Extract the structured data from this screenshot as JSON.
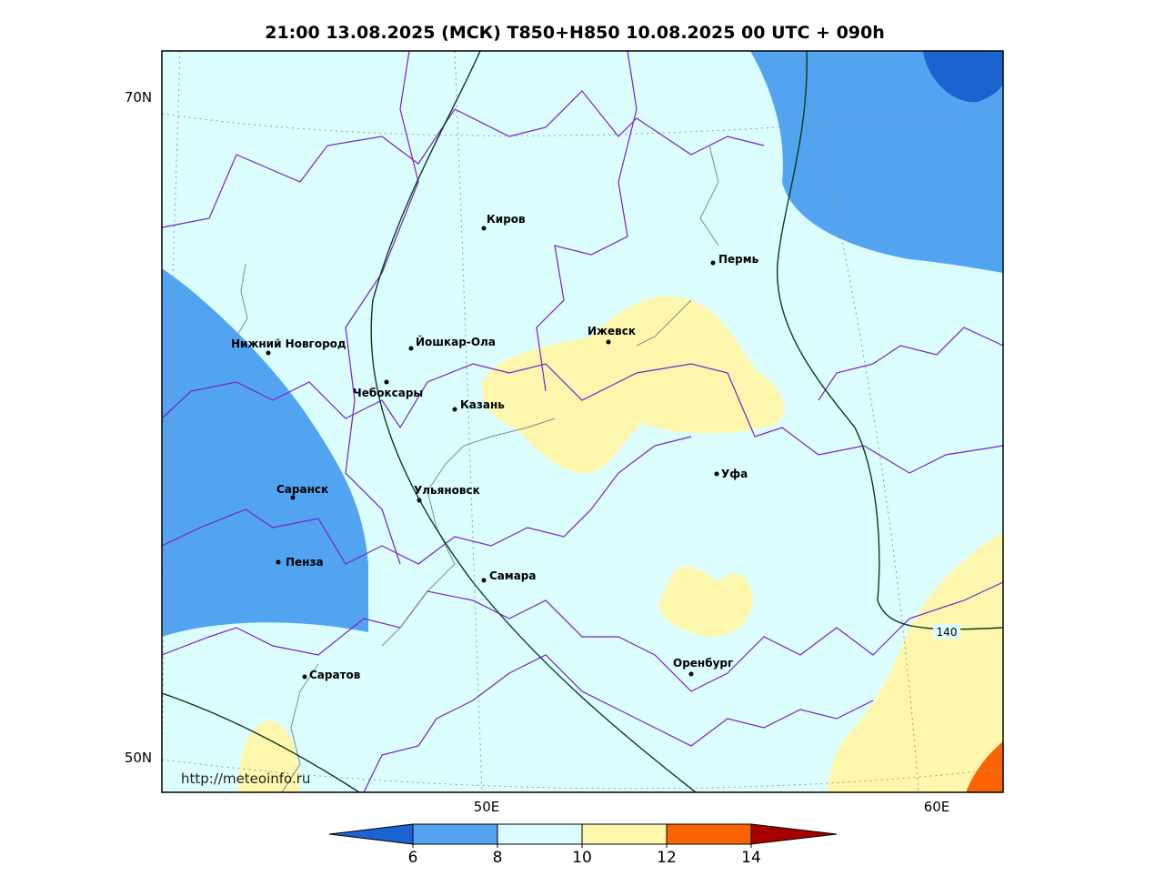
{
  "title": "21:00 13.08.2025 (МСК) T850+H850 10.08.2025 00 UTC + 090h",
  "map": {
    "lat_labels": [
      "70N",
      "50N"
    ],
    "lon_labels": [
      "50E",
      "60E"
    ],
    "cities": [
      "Киров",
      "Пермь",
      "Нижний Новгород",
      "Йошкар-Ола",
      "Ижевск",
      "Чебоксары",
      "Казань",
      "Уфа",
      "Саранск",
      "Ульяновск",
      "Пенза",
      "Самара",
      "Оренбург",
      "Саратов"
    ],
    "contour_label": 140,
    "source": "http://meteoinfo.ru"
  },
  "colorbar": {
    "ticks": [
      6,
      8,
      10,
      12,
      14
    ],
    "colors": [
      "#1a63d1",
      "#52a3f0",
      "#dbfdfd",
      "#fdf7ae",
      "#fa6400",
      "#a80000"
    ]
  }
}
